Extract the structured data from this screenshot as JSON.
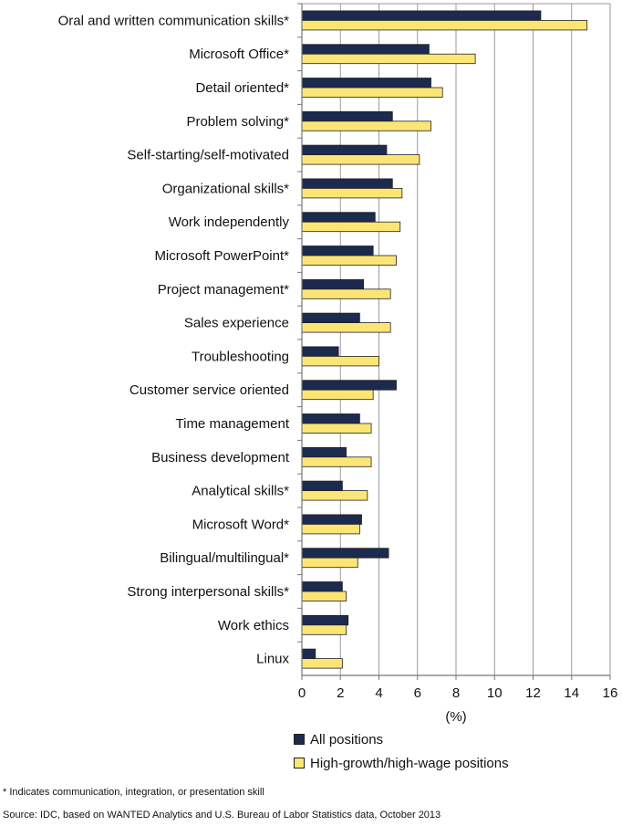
{
  "chart_data": {
    "type": "bar",
    "orientation": "horizontal",
    "categories": [
      "Oral and written communication skills*",
      "Microsoft Office*",
      "Detail oriented*",
      "Problem solving*",
      "Self-starting/self-motivated",
      "Organizational skills*",
      "Work independently",
      "Microsoft PowerPoint*",
      "Project management*",
      "Sales experience",
      "Troubleshooting",
      "Customer service oriented",
      "Time management",
      "Business development",
      "Analytical skills*",
      "Microsoft Word*",
      "Bilingual/multilingual*",
      "Strong interpersonal skills*",
      "Work ethics",
      "Linux"
    ],
    "series": [
      {
        "name": "All positions",
        "color": "#1c2a4f",
        "values": [
          12.4,
          6.6,
          6.7,
          4.7,
          4.4,
          4.7,
          3.8,
          3.7,
          3.2,
          3.0,
          1.9,
          4.9,
          3.0,
          2.3,
          2.1,
          3.1,
          4.5,
          2.1,
          2.4,
          0.7
        ]
      },
      {
        "name": "High-growth/high-wage positions",
        "color": "#fbe675",
        "values": [
          14.8,
          9.0,
          7.3,
          6.7,
          6.1,
          5.2,
          5.1,
          4.9,
          4.6,
          4.6,
          4.0,
          3.7,
          3.6,
          3.6,
          3.4,
          3.0,
          2.9,
          2.3,
          2.3,
          2.1
        ]
      }
    ],
    "xlabel": "(%)",
    "xlim": [
      0,
      16
    ],
    "xticks": [
      0,
      2,
      4,
      6,
      8,
      10,
      12,
      14,
      16
    ],
    "grid": true,
    "legend_position": "bottom"
  },
  "footnotes": {
    "note": "* Indicates communication, integration, or presentation skill",
    "source": "Source: IDC, based on WANTED Analytics and U.S. Bureau of Labor Statistics data, October 2013"
  }
}
